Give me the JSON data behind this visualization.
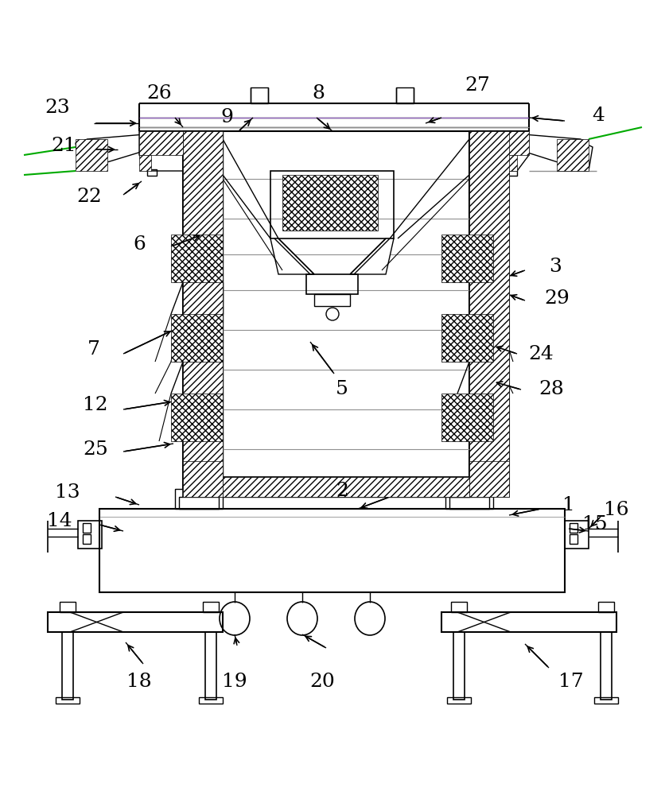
{
  "bg_color": "#ffffff",
  "line_color": "#000000",
  "green_color": "#00aa00",
  "gray_color": "#909090",
  "purple_color": "#9966cc",
  "lfs": 18
}
